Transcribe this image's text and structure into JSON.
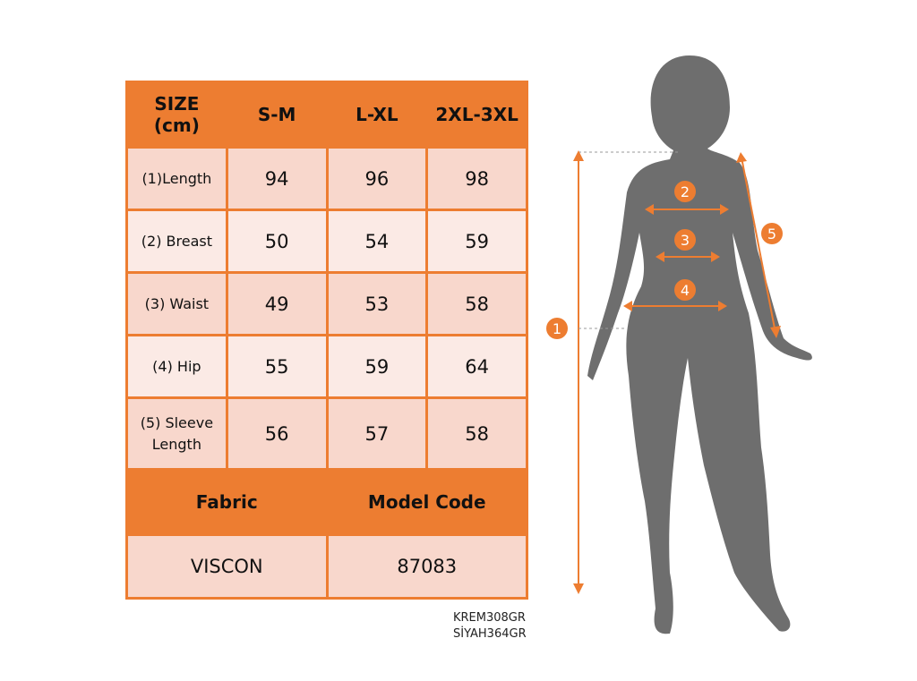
{
  "table": {
    "header": [
      "SIZE\n(cm)",
      "S-M",
      "L-XL",
      "2XL-3XL"
    ],
    "header_size_line1": "SIZE",
    "header_size_line2": "(cm)",
    "rows": [
      {
        "label": "(1)Length",
        "values": [
          "94",
          "96",
          "98"
        ]
      },
      {
        "label": "(2) Breast",
        "values": [
          "50",
          "54",
          "59"
        ]
      },
      {
        "label": "(3) Waist",
        "values": [
          "49",
          "53",
          "58"
        ]
      },
      {
        "label": "(4) Hip",
        "values": [
          "55",
          "59",
          "64"
        ]
      },
      {
        "label": "(5) Sleeve Length",
        "label_line1": "(5) Sleeve",
        "label_line2": "Length",
        "values": [
          "56",
          "57",
          "58"
        ]
      }
    ],
    "fabric_label": "Fabric",
    "model_code_label": "Model Code",
    "fabric_value": "VISCON",
    "model_code_value": "87083"
  },
  "color_codes": [
    "KREM308GR",
    "SİYAH364GR"
  ],
  "figure": {
    "markers": [
      "1",
      "2",
      "3",
      "4",
      "5"
    ]
  },
  "colors": {
    "accent": "#ED7D31",
    "row_dark": "#F8D7CC",
    "row_light": "#FBEAE5",
    "silhouette": "#6E6E6E"
  }
}
